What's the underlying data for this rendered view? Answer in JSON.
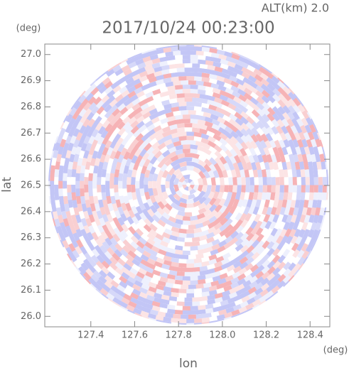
{
  "chart_data": {
    "type": "radar-ppi",
    "title": "2017/10/24 00:23:00",
    "altitude_label": "ALT(km) 2.0",
    "y_unit": "(deg)",
    "x_unit": "(deg)",
    "xlabel": "lon",
    "ylabel": "lat",
    "xlim": [
      127.19,
      128.49
    ],
    "ylim": [
      25.96,
      27.04
    ],
    "xticks": [
      127.4,
      127.6,
      127.8,
      {
        "value": 128,
        "label": "128.0"
      },
      128.2,
      128.4
    ],
    "yticks": [
      {
        "value": 26,
        "label": "26.0"
      },
      26.1,
      26.2,
      26.3,
      26.4,
      26.5,
      26.6,
      26.7,
      26.8,
      26.9,
      {
        "value": 27,
        "label": "27.0"
      }
    ]
  }
}
